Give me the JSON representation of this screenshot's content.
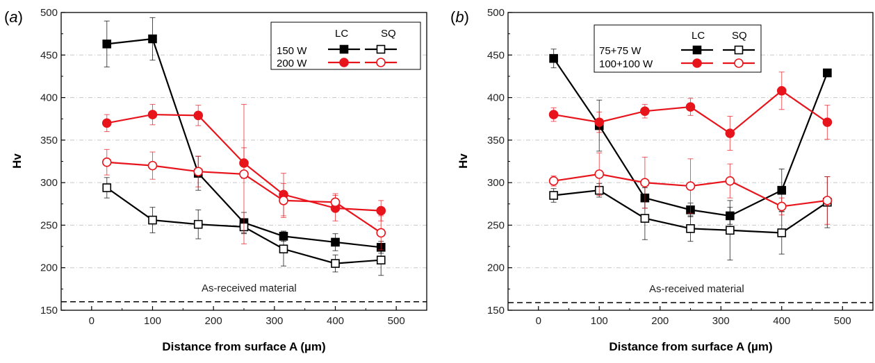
{
  "colors": {
    "black_series": "#000000",
    "red_series": "#e8141c",
    "grid": "#c8c8c8",
    "axis": "#000000"
  },
  "chart_data": [
    {
      "type": "line",
      "panel_label": "(a)",
      "panel_prefix": "(",
      "panel_letter": "a",
      "panel_suffix": ")",
      "xlabel": "Distance from surface A (µm)",
      "ylabel": "Hv",
      "xlim": [
        -50,
        550
      ],
      "ylim": [
        150,
        500
      ],
      "x_ticks": [
        "0",
        "100",
        "200",
        "300",
        "400",
        "500"
      ],
      "y_ticks": [
        "150",
        "200",
        "250",
        "300",
        "350",
        "400",
        "450",
        "500"
      ],
      "grid": "horizontal dashed",
      "legend_placement": "top-right",
      "legend_headers": [
        "LC",
        "SQ"
      ],
      "legend_rows": [
        "150 W",
        "200 W"
      ],
      "reference_line": {
        "y": 160,
        "label": "As-received material",
        "style": "dashed"
      },
      "series": [
        {
          "group": "150 W",
          "method": "LC",
          "color": "black",
          "marker": "filled-square",
          "x": [
            25,
            100,
            175,
            250,
            315,
            400,
            475
          ],
          "y": [
            463,
            469,
            311,
            253,
            237,
            230,
            224
          ],
          "err": [
            27,
            25,
            20,
            12,
            6,
            10,
            7
          ]
        },
        {
          "group": "150 W",
          "method": "SQ",
          "color": "black",
          "marker": "open-square",
          "x": [
            25,
            100,
            175,
            250,
            315,
            400,
            475
          ],
          "y": [
            294,
            256,
            251,
            248,
            222,
            205,
            209
          ],
          "err": [
            12,
            15,
            17,
            8,
            20,
            10,
            18
          ]
        },
        {
          "group": "200 W",
          "method": "LC",
          "color": "red",
          "marker": "filled-circle",
          "x": [
            25,
            100,
            175,
            250,
            315,
            400,
            475
          ],
          "y": [
            370,
            380,
            379,
            323,
            286,
            270,
            267
          ],
          "err": [
            10,
            12,
            12,
            18,
            25,
            15,
            12
          ]
        },
        {
          "group": "200 W",
          "method": "SQ",
          "color": "red",
          "marker": "open-circle",
          "x": [
            25,
            100,
            175,
            250,
            315,
            400,
            475
          ],
          "y": [
            324,
            320,
            313,
            310,
            279,
            277,
            241
          ],
          "err": [
            15,
            16,
            18,
            82,
            20,
            10,
            20
          ]
        }
      ]
    },
    {
      "type": "line",
      "panel_label": "(b)",
      "panel_prefix": "(",
      "panel_letter": "b",
      "panel_suffix": ")",
      "xlabel": "Distance from surface A (µm)",
      "ylabel": "Hv",
      "xlim": [
        -50,
        550
      ],
      "ylim": [
        150,
        500
      ],
      "x_ticks": [
        "0",
        "100",
        "200",
        "300",
        "400",
        "500"
      ],
      "y_ticks": [
        "150",
        "200",
        "250",
        "300",
        "350",
        "400",
        "450",
        "500"
      ],
      "grid": "horizontal dashed",
      "legend_placement": "top-left",
      "legend_headers": [
        "LC",
        "SQ"
      ],
      "legend_rows": [
        "75+75 W",
        "100+100 W"
      ],
      "reference_line": {
        "y": 159,
        "label": "As-received material",
        "style": "dashed"
      },
      "series": [
        {
          "group": "75+75 W",
          "method": "LC",
          "color": "black",
          "marker": "filled-square",
          "x": [
            25,
            100,
            175,
            250,
            315,
            400,
            475
          ],
          "y": [
            446,
            367,
            282,
            268,
            261,
            291,
            429
          ],
          "err": [
            11,
            30,
            12,
            8,
            10,
            25,
            0
          ]
        },
        {
          "group": "75+75 W",
          "method": "SQ",
          "color": "black",
          "marker": "open-square",
          "x": [
            25,
            100,
            175,
            250,
            315,
            400,
            475
          ],
          "y": [
            285,
            291,
            258,
            246,
            244,
            241,
            277
          ],
          "err": [
            8,
            8,
            25,
            15,
            35,
            25,
            30
          ]
        },
        {
          "group": "100+100 W",
          "method": "LC",
          "color": "red",
          "marker": "filled-circle",
          "x": [
            25,
            100,
            175,
            250,
            315,
            400,
            475
          ],
          "y": [
            380,
            371,
            384,
            389,
            358,
            408,
            371
          ],
          "err": [
            8,
            12,
            8,
            10,
            20,
            22,
            20
          ]
        },
        {
          "group": "100+100 W",
          "method": "SQ",
          "color": "red",
          "marker": "open-circle",
          "x": [
            25,
            100,
            175,
            250,
            315,
            400,
            475
          ],
          "y": [
            302,
            310,
            300,
            296,
            302,
            272,
            279
          ],
          "err": [
            6,
            25,
            30,
            32,
            20,
            10,
            28
          ]
        }
      ]
    }
  ]
}
